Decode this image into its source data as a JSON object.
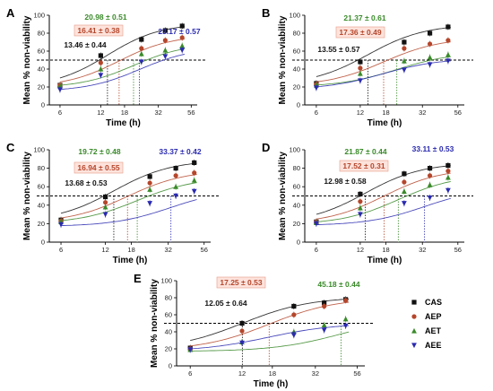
{
  "figure": {
    "ylabel": "Mean % non-viability",
    "xlabel": "Time (h)",
    "legend": [
      {
        "name": "CAS",
        "color": "#111111",
        "marker": "square"
      },
      {
        "name": "AEP",
        "color": "#b5462b",
        "marker": "circle"
      },
      {
        "name": "AET",
        "color": "#3a8a2a",
        "marker": "triangle-up"
      },
      {
        "name": "AEE",
        "color": "#2a2ab0",
        "marker": "triangle-down"
      }
    ]
  },
  "chart_data": [
    {
      "type": "scatter",
      "panel": "A",
      "xscale": "log",
      "xticks": [
        6,
        12,
        18,
        32,
        56
      ],
      "yticks": [
        0,
        20,
        40,
        60,
        80,
        100
      ],
      "ylim": [
        0,
        100
      ],
      "xlim": [
        5,
        62
      ],
      "reference_y": 50,
      "x": [
        6,
        12,
        24,
        36,
        48
      ],
      "series": [
        {
          "name": "CAS",
          "color": "#111111",
          "marker": "square",
          "values": [
            22,
            55,
            73,
            83,
            88
          ],
          "ec50": 13.46
        },
        {
          "name": "AEP",
          "color": "#b5462b",
          "marker": "circle",
          "values": [
            22,
            47,
            63,
            72,
            75
          ],
          "ec50": 16.41
        },
        {
          "name": "AET",
          "color": "#3a8a2a",
          "marker": "triangle-up",
          "values": [
            21,
            40,
            57,
            61,
            66
          ],
          "ec50": 20.98
        },
        {
          "name": "AEE",
          "color": "#2a2ab0",
          "marker": "triangle-down",
          "values": [
            17,
            33,
            48,
            54,
            61
          ],
          "ec50": 23.17
        }
      ],
      "annotations": [
        {
          "text": "20.98 ± 0.51",
          "color": "#3a8a2a",
          "boxed": false
        },
        {
          "text": "16.41 ± 0.38",
          "color": "#b5462b",
          "boxed": true
        },
        {
          "text": "23.17 ± 0.57",
          "color": "#2a2ab0",
          "boxed": false
        },
        {
          "text": "13.46 ± 0.44",
          "color": "#111111",
          "boxed": false
        }
      ]
    },
    {
      "type": "scatter",
      "panel": "B",
      "xscale": "log",
      "xticks": [
        6,
        12,
        18,
        32,
        56
      ],
      "yticks": [
        0,
        20,
        40,
        60,
        80,
        100
      ],
      "ylim": [
        0,
        100
      ],
      "xlim": [
        5,
        62
      ],
      "reference_y": 50,
      "x": [
        6,
        12,
        24,
        36,
        48
      ],
      "series": [
        {
          "name": "CAS",
          "color": "#111111",
          "marker": "square",
          "values": [
            24,
            48,
            70,
            80,
            87
          ],
          "ec50": 13.55
        },
        {
          "name": "AEP",
          "color": "#b5462b",
          "marker": "circle",
          "values": [
            23,
            41,
            63,
            68,
            72
          ],
          "ec50": 17.36
        },
        {
          "name": "AET",
          "color": "#3a8a2a",
          "marker": "triangle-up",
          "values": [
            22,
            35,
            49,
            53,
            56
          ],
          "ec50": 21.37
        },
        {
          "name": "AEE",
          "color": "#2a2ab0",
          "marker": "triangle-down",
          "values": [
            19,
            27,
            39,
            45,
            49
          ],
          "ec50": null
        }
      ],
      "annotations": [
        {
          "text": "21.37 ± 0.61",
          "color": "#3a8a2a",
          "boxed": false
        },
        {
          "text": "17.36 ± 0.49",
          "color": "#b5462b",
          "boxed": true
        },
        {
          "text": "13.55 ± 0.57",
          "color": "#111111",
          "boxed": false
        }
      ]
    },
    {
      "type": "scatter",
      "panel": "C",
      "xscale": "log",
      "xticks": [
        6,
        12,
        18,
        32,
        56
      ],
      "yticks": [
        0,
        20,
        40,
        60,
        80,
        100
      ],
      "ylim": [
        0,
        100
      ],
      "xlim": [
        5,
        62
      ],
      "reference_y": 50,
      "x": [
        6,
        12,
        24,
        36,
        48
      ],
      "series": [
        {
          "name": "CAS",
          "color": "#111111",
          "marker": "square",
          "values": [
            24,
            49,
            71,
            80,
            86
          ],
          "ec50": 13.68
        },
        {
          "name": "AEP",
          "color": "#b5462b",
          "marker": "circle",
          "values": [
            23,
            43,
            64,
            72,
            75
          ],
          "ec50": 16.94
        },
        {
          "name": "AET",
          "color": "#3a8a2a",
          "marker": "triangle-up",
          "values": [
            22,
            38,
            57,
            60,
            67
          ],
          "ec50": 19.72
        },
        {
          "name": "AEE",
          "color": "#2a2ab0",
          "marker": "triangle-down",
          "values": [
            19,
            30,
            42,
            50,
            55
          ],
          "ec50": 33.37
        }
      ],
      "annotations": [
        {
          "text": "19.72 ± 0.48",
          "color": "#3a8a2a",
          "boxed": false
        },
        {
          "text": "33.37 ± 0.42",
          "color": "#2a2ab0",
          "boxed": false
        },
        {
          "text": "16.94 ± 0.55",
          "color": "#b5462b",
          "boxed": true
        },
        {
          "text": "13.68 ± 0.53",
          "color": "#111111",
          "boxed": false
        }
      ]
    },
    {
      "type": "scatter",
      "panel": "D",
      "xscale": "log",
      "xticks": [
        6,
        12,
        18,
        32,
        56
      ],
      "yticks": [
        0,
        20,
        40,
        60,
        80,
        100
      ],
      "ylim": [
        0,
        100
      ],
      "xlim": [
        5,
        62
      ],
      "reference_y": 50,
      "x": [
        6,
        12,
        24,
        36,
        48
      ],
      "series": [
        {
          "name": "CAS",
          "color": "#111111",
          "marker": "square",
          "values": [
            22,
            52,
            74,
            80,
            83
          ],
          "ec50": 12.98
        },
        {
          "name": "AEP",
          "color": "#b5462b",
          "marker": "circle",
          "values": [
            22,
            44,
            65,
            72,
            77
          ],
          "ec50": 17.52
        },
        {
          "name": "AET",
          "color": "#3a8a2a",
          "marker": "triangle-up",
          "values": [
            21,
            37,
            55,
            62,
            70
          ],
          "ec50": 21.87
        },
        {
          "name": "AEE",
          "color": "#2a2ab0",
          "marker": "triangle-down",
          "values": [
            20,
            30,
            42,
            48,
            56
          ],
          "ec50": 33.11
        }
      ],
      "annotations": [
        {
          "text": "21.87 ± 0.44",
          "color": "#3a8a2a",
          "boxed": false
        },
        {
          "text": "33.11 ± 0.53",
          "color": "#2a2ab0",
          "boxed": false
        },
        {
          "text": "17.52 ± 0.31",
          "color": "#b5462b",
          "boxed": true
        },
        {
          "text": "12.98 ± 0.58",
          "color": "#111111",
          "boxed": false
        }
      ]
    },
    {
      "type": "scatter",
      "panel": "E",
      "xscale": "log",
      "xticks": [
        6,
        12,
        18,
        32,
        56
      ],
      "yticks": [
        0,
        20,
        40,
        60,
        80,
        100
      ],
      "ylim": [
        0,
        100
      ],
      "xlim": [
        5,
        62
      ],
      "reference_y": 50,
      "x": [
        6,
        12,
        24,
        36,
        48
      ],
      "series": [
        {
          "name": "CAS",
          "color": "#111111",
          "marker": "square",
          "values": [
            21,
            50,
            70,
            74,
            78
          ],
          "ec50": 12.05
        },
        {
          "name": "AEP",
          "color": "#b5462b",
          "marker": "circle",
          "values": [
            20,
            41,
            60,
            70,
            77
          ],
          "ec50": 17.25
        },
        {
          "name": "AET",
          "color": "#3a8a2a",
          "marker": "triangle-up",
          "values": [
            19,
            28,
            40,
            48,
            55
          ],
          "ec50": 45.18
        },
        {
          "name": "AEE",
          "color": "#2a2ab0",
          "marker": "triangle-down",
          "values": [
            19,
            27,
            36,
            42,
            47
          ],
          "ec50": null
        }
      ],
      "annotations": [
        {
          "text": "17.25 ± 0.53",
          "color": "#b5462b",
          "boxed": true
        },
        {
          "text": "45.18 ± 0.44",
          "color": "#3a8a2a",
          "boxed": false
        },
        {
          "text": "12.05 ± 0.64",
          "color": "#111111",
          "boxed": false
        }
      ]
    }
  ]
}
